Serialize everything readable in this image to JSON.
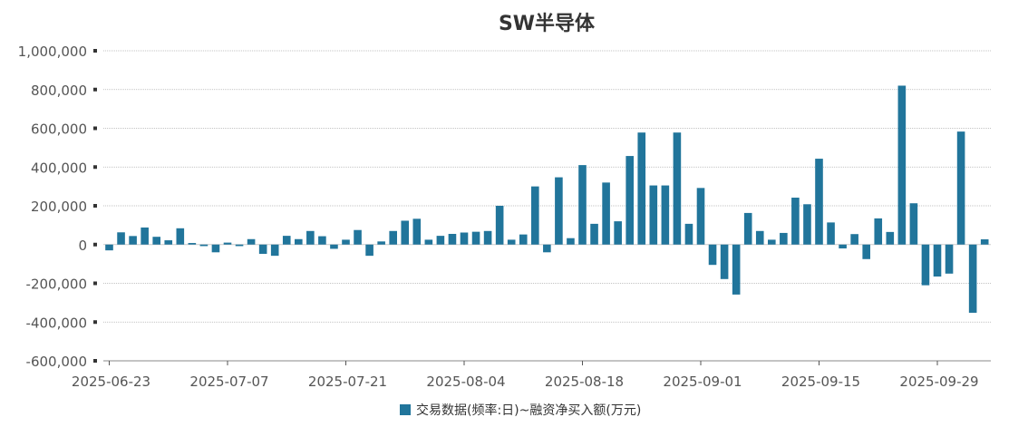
{
  "chart_data": {
    "type": "bar",
    "title": "SW半导体",
    "legend": {
      "label": "交易数据(频率:日)~融资净买入额(万元)",
      "placement": "bottom-center"
    },
    "bar_color": "#21759b",
    "grid": true,
    "ylim": [
      -600000,
      1000000
    ],
    "yticks": [
      {
        "value": 1000000,
        "label": "1,000,000"
      },
      {
        "value": 800000,
        "label": "800,000"
      },
      {
        "value": 600000,
        "label": "600,000"
      },
      {
        "value": 400000,
        "label": "400,000"
      },
      {
        "value": 200000,
        "label": "200,000"
      },
      {
        "value": 0,
        "label": "0"
      },
      {
        "value": -200000,
        "label": "-200,000"
      },
      {
        "value": -400000,
        "label": "-400,000"
      },
      {
        "value": -600000,
        "label": "-600,000"
      }
    ],
    "xtick_labels": [
      {
        "index": 0,
        "label": "2025-06-23"
      },
      {
        "index": 10,
        "label": "2025-07-07"
      },
      {
        "index": 20,
        "label": "2025-07-21"
      },
      {
        "index": 30,
        "label": "2025-08-04"
      },
      {
        "index": 40,
        "label": "2025-08-18"
      },
      {
        "index": 50,
        "label": "2025-09-01"
      },
      {
        "index": 60,
        "label": "2025-09-15"
      },
      {
        "index": 70,
        "label": "2025-09-29"
      }
    ],
    "values": [
      -30000,
      63000,
      44000,
      88000,
      40000,
      22000,
      84000,
      8000,
      -8000,
      -40000,
      10000,
      -8000,
      28000,
      -48000,
      -58000,
      45000,
      28000,
      70000,
      43000,
      -22000,
      25000,
      75000,
      -58000,
      16000,
      70000,
      123000,
      133000,
      25000,
      45000,
      55000,
      62000,
      66000,
      70000,
      200000,
      25000,
      52000,
      300000,
      -40000,
      347000,
      33000,
      410000,
      107000,
      320000,
      120000,
      457000,
      578000,
      305000,
      305000,
      578000,
      107000,
      292000,
      -105000,
      -178000,
      -258000,
      163000,
      70000,
      25000,
      60000,
      242000,
      208000,
      443000,
      114000,
      -20000,
      54000,
      -75000,
      135000,
      65000,
      820000,
      213000,
      -210000,
      -165000,
      -150000,
      583000,
      -352000,
      27000
    ]
  }
}
